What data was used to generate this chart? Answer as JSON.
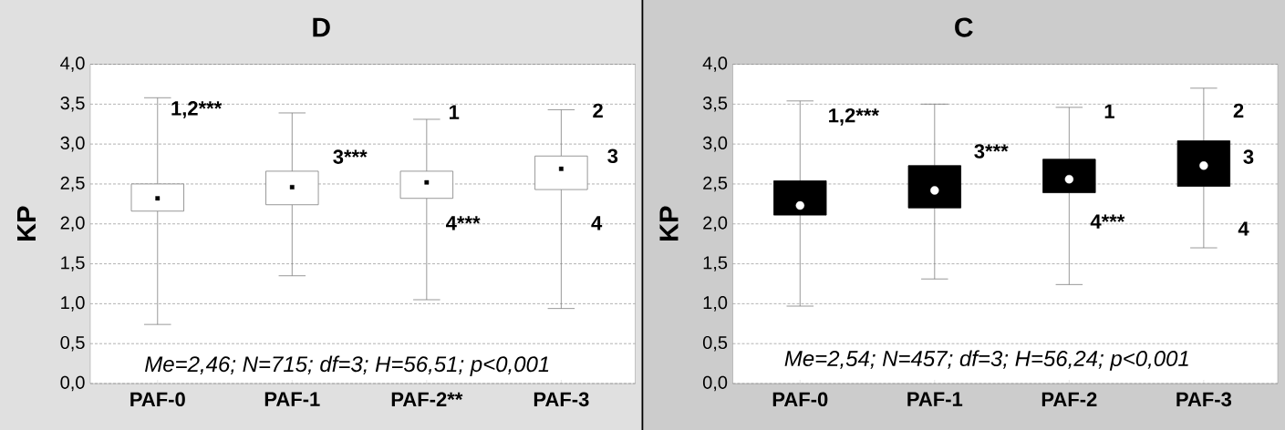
{
  "chart_data": [
    {
      "type": "box",
      "title": "D",
      "ylabel": "KP",
      "categories": [
        "PAF-0",
        "PAF-1",
        "PAF-2**",
        "PAF-3"
      ],
      "boxes": [
        {
          "low": 0.74,
          "q1": 2.16,
          "median": 2.32,
          "q3": 2.5,
          "high": 3.58
        },
        {
          "low": 1.35,
          "q1": 2.24,
          "median": 2.46,
          "q3": 2.66,
          "high": 3.39
        },
        {
          "low": 1.05,
          "q1": 2.32,
          "median": 2.52,
          "q3": 2.66,
          "high": 3.31
        },
        {
          "low": 0.94,
          "q1": 2.43,
          "median": 2.69,
          "q3": 2.85,
          "high": 3.43
        }
      ],
      "color": "#ffffff",
      "marker": "square",
      "grid": "y",
      "ylim": [
        0,
        4
      ],
      "yticks": [
        {
          "value": 0,
          "label": "0,0"
        },
        {
          "value": 0.5,
          "label": "0,5"
        },
        {
          "value": 1,
          "label": "1,0"
        },
        {
          "value": 1.5,
          "label": "1,5"
        },
        {
          "value": 2,
          "label": "2,0"
        },
        {
          "value": 2.5,
          "label": "2,5"
        },
        {
          "value": 3,
          "label": "3,0"
        },
        {
          "value": 3.5,
          "label": "3,5"
        },
        {
          "value": 4,
          "label": "4,0"
        }
      ],
      "annotations": [
        "1,2***",
        "3***",
        "1",
        "4***",
        "2",
        "3",
        "4",
        "Me=2,46; N=715; df=3; H=56,51; p<0,001"
      ]
    },
    {
      "type": "box",
      "title": "C",
      "ylabel": "KP",
      "categories": [
        "PAF-0",
        "PAF-1",
        "PAF-2",
        "PAF-3"
      ],
      "boxes": [
        {
          "low": 0.97,
          "q1": 2.11,
          "median": 2.23,
          "q3": 2.54,
          "high": 3.54
        },
        {
          "low": 1.31,
          "q1": 2.2,
          "median": 2.42,
          "q3": 2.73,
          "high": 3.5
        },
        {
          "low": 1.24,
          "q1": 2.39,
          "median": 2.56,
          "q3": 2.81,
          "high": 3.46
        },
        {
          "low": 1.7,
          "q1": 2.47,
          "median": 2.73,
          "q3": 3.04,
          "high": 3.7
        }
      ],
      "color": "#000000",
      "marker": "circle",
      "grid": "y",
      "ylim": [
        0,
        4
      ],
      "yticks": [
        {
          "value": 0,
          "label": "0,0"
        },
        {
          "value": 0.5,
          "label": "0,5"
        },
        {
          "value": 1,
          "label": "1,0"
        },
        {
          "value": 1.5,
          "label": "1,5"
        },
        {
          "value": 2,
          "label": "2,0"
        },
        {
          "value": 2.5,
          "label": "2,5"
        },
        {
          "value": 3,
          "label": "3,0"
        },
        {
          "value": 3.5,
          "label": "3,5"
        },
        {
          "value": 4,
          "label": "4,0"
        }
      ],
      "annotations": [
        "1,2***",
        "3***",
        "1",
        "4***",
        "2",
        "3",
        "4",
        "Me=2,54; N=457; df=3; H=56,24; p<0,001"
      ]
    }
  ]
}
